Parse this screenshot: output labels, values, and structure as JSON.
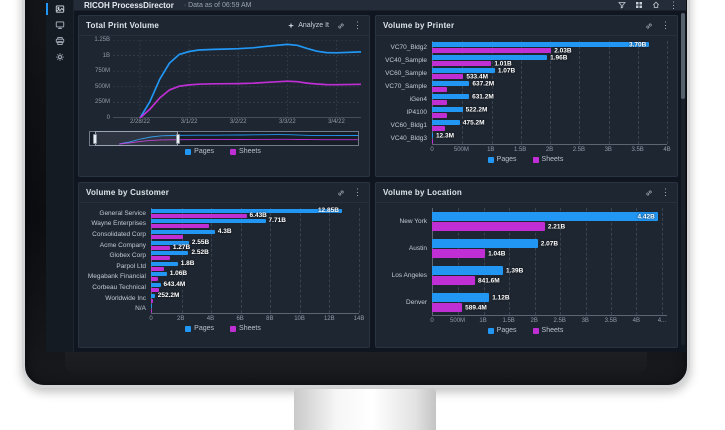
{
  "app": {
    "name": "RICOH ProcessDirector",
    "data_as_of": "· Data as of 06:59 AM"
  },
  "colors": {
    "pages": "#2196F3",
    "sheets": "#BF2FD4"
  },
  "panels": [
    {
      "title": "Total Print Volume",
      "analyze_label": "Analyze It"
    },
    {
      "title": "Volume by Printer"
    },
    {
      "title": "Volume by Customer"
    },
    {
      "title": "Volume by Location"
    }
  ],
  "chart_data": [
    {
      "id": "total-print-volume",
      "type": "line",
      "title": "Total Print Volume",
      "unit_note": "values in millions of impressions",
      "x_range_days": [
        -0.55,
        4.5
      ],
      "x_ticks": [
        {
          "v": 0,
          "label": "2/28/22"
        },
        {
          "v": 1,
          "label": "3/1/22"
        },
        {
          "v": 2,
          "label": "3/2/22"
        },
        {
          "v": 3,
          "label": "3/3/22"
        },
        {
          "v": 4,
          "label": "3/4/22"
        }
      ],
      "y_max_M": 1250,
      "y_ticks": [
        {
          "v": 0,
          "label": "0"
        },
        {
          "v": 250,
          "label": "250M"
        },
        {
          "v": 500,
          "label": "500M"
        },
        {
          "v": 750,
          "label": "750M"
        },
        {
          "v": 1000,
          "label": "1B"
        },
        {
          "v": 1250,
          "label": "1.25B"
        }
      ],
      "series": [
        {
          "name": "Pages",
          "color": "pages",
          "points": [
            [
              0,
              0
            ],
            [
              0.2,
              260
            ],
            [
              0.4,
              620
            ],
            [
              0.6,
              880
            ],
            [
              0.8,
              1020
            ],
            [
              1,
              1065
            ],
            [
              1.2,
              1090
            ],
            [
              1.5,
              1100
            ],
            [
              1.8,
              1105
            ],
            [
              2,
              1110
            ],
            [
              2.3,
              1125
            ],
            [
              2.6,
              1150
            ],
            [
              3,
              1180
            ],
            [
              3.2,
              1165
            ],
            [
              3.4,
              1115
            ],
            [
              3.6,
              1070
            ],
            [
              3.8,
              1048
            ],
            [
              4,
              1045
            ],
            [
              4.5,
              1060
            ]
          ]
        },
        {
          "name": "Sheets",
          "color": "sheets",
          "points": [
            [
              0,
              0
            ],
            [
              0.2,
              140
            ],
            [
              0.4,
              320
            ],
            [
              0.6,
              450
            ],
            [
              0.8,
              510
            ],
            [
              1,
              530
            ],
            [
              1.2,
              542
            ],
            [
              1.5,
              548
            ],
            [
              1.8,
              550
            ],
            [
              2,
              552
            ],
            [
              2.3,
              558
            ],
            [
              2.6,
              572
            ],
            [
              3,
              590
            ],
            [
              3.2,
              582
            ],
            [
              3.4,
              560
            ],
            [
              3.6,
              545
            ],
            [
              3.8,
              536
            ],
            [
              4,
              533
            ],
            [
              4.5,
              540
            ]
          ]
        }
      ],
      "brush": {
        "selection_start_pct": 2,
        "selection_end_pct": 33
      },
      "legend": [
        "Pages",
        "Sheets"
      ]
    },
    {
      "id": "volume-by-printer",
      "type": "bar",
      "orientation": "horizontal",
      "title": "Volume by Printer",
      "categories": [
        "VC70_Bldg2",
        "VC40_Sample",
        "VC60_Sample",
        "VC70_Sample",
        "iGen4",
        "IP4100",
        "VC60_Bldg1",
        "VC40_Bldg3"
      ],
      "x_max_M": 4000,
      "x_ticks": [
        {
          "v": 0,
          "label": "0"
        },
        {
          "v": 500,
          "label": "500M"
        },
        {
          "v": 1000,
          "label": "1B"
        },
        {
          "v": 1500,
          "label": "1.5B"
        },
        {
          "v": 2000,
          "label": "2B"
        },
        {
          "v": 2500,
          "label": "2.5B"
        },
        {
          "v": 3000,
          "label": "3B"
        },
        {
          "v": 3500,
          "label": "3.5B"
        },
        {
          "v": 4000,
          "label": "4B"
        }
      ],
      "series": [
        {
          "name": "Pages",
          "color": "pages",
          "values_M": [
            3700,
            1960,
            1070,
            637.2,
            631.2,
            522.2,
            475.2,
            12.3
          ],
          "labels": [
            "3.70B",
            "1.96B",
            "1.07B",
            "637.2M",
            "631.2M",
            "522.2M",
            "475.2M",
            "12.3M"
          ],
          "label_inside": [
            true,
            false,
            false,
            false,
            false,
            false,
            false,
            false
          ]
        },
        {
          "name": "Sheets",
          "color": "sheets",
          "values_M": [
            2030,
            1010,
            533.4,
            260,
            255,
            250,
            225,
            4
          ],
          "labels": [
            "2.03B",
            "1.01B",
            "533.4M",
            null,
            null,
            null,
            null,
            null
          ],
          "label_inside": [
            false,
            false,
            false,
            false,
            false,
            false,
            false,
            false
          ]
        }
      ],
      "legend": [
        "Pages",
        "Sheets"
      ]
    },
    {
      "id": "volume-by-customer",
      "type": "bar",
      "orientation": "horizontal",
      "title": "Volume by Customer",
      "categories": [
        "General Service",
        "Wayne Enterprises",
        "Consolidated Corp",
        "Acme Company",
        "Globex Corp",
        "Parpol Ltd",
        "Megabank Financial",
        "Corbeau Technical",
        "Worldwide Inc",
        "N/A"
      ],
      "x_max_M": 14000,
      "x_ticks": [
        {
          "v": 0,
          "label": "0"
        },
        {
          "v": 2000,
          "label": "2B"
        },
        {
          "v": 4000,
          "label": "4B"
        },
        {
          "v": 6000,
          "label": "6B"
        },
        {
          "v": 8000,
          "label": "8B"
        },
        {
          "v": 10000,
          "label": "10B"
        },
        {
          "v": 12000,
          "label": "12B"
        },
        {
          "v": 14000,
          "label": "14B"
        }
      ],
      "series": [
        {
          "name": "Pages",
          "color": "pages",
          "values_M": [
            12850,
            7710,
            4300,
            2550,
            2520,
            1800,
            1060,
            643.4,
            252.2,
            30
          ],
          "labels": [
            "12.85B",
            "7.71B",
            "4.3B",
            "2.55B",
            "2.52B",
            "1.8B",
            "1.06B",
            "643.4M",
            "252.2M",
            null
          ],
          "label_inside": [
            true,
            false,
            false,
            false,
            false,
            false,
            false,
            false,
            false,
            false
          ]
        },
        {
          "name": "Sheets",
          "color": "sheets",
          "values_M": [
            6430,
            3900,
            2150,
            1270,
            1300,
            900,
            500,
            560,
            110,
            8
          ],
          "labels": [
            "6.43B",
            null,
            null,
            "1.27B",
            null,
            null,
            null,
            null,
            null,
            null
          ],
          "label_inside": [
            false,
            false,
            false,
            false,
            false,
            false,
            false,
            false,
            false,
            false
          ]
        }
      ],
      "legend": [
        "Pages",
        "Sheets"
      ]
    },
    {
      "id": "volume-by-location",
      "type": "bar",
      "orientation": "horizontal",
      "title": "Volume by Location",
      "categories": [
        "New York",
        "Austin",
        "Los Angeles",
        "Denver"
      ],
      "x_max_M": 4600,
      "x_ticks": [
        {
          "v": 0,
          "label": "0"
        },
        {
          "v": 500,
          "label": "500M"
        },
        {
          "v": 1000,
          "label": "1B"
        },
        {
          "v": 1500,
          "label": "1.5B"
        },
        {
          "v": 2000,
          "label": "2B"
        },
        {
          "v": 2500,
          "label": "2.5B"
        },
        {
          "v": 3000,
          "label": "3B"
        },
        {
          "v": 3500,
          "label": "3.5B"
        },
        {
          "v": 4000,
          "label": "4B"
        },
        {
          "v": 4500,
          "label": "4..."
        }
      ],
      "series": [
        {
          "name": "Pages",
          "color": "pages",
          "values_M": [
            4420,
            2070,
            1390,
            1120
          ],
          "labels": [
            "4.42B",
            "2.07B",
            "1.39B",
            "1.12B"
          ],
          "label_inside": [
            true,
            false,
            false,
            false
          ]
        },
        {
          "name": "Sheets",
          "color": "sheets",
          "values_M": [
            2210,
            1040,
            841.6,
            589.4
          ],
          "labels": [
            "2.21B",
            "1.04B",
            "841.6M",
            "589.4M"
          ],
          "label_inside": [
            false,
            false,
            false,
            false
          ]
        }
      ],
      "legend": [
        "Pages",
        "Sheets"
      ]
    }
  ]
}
